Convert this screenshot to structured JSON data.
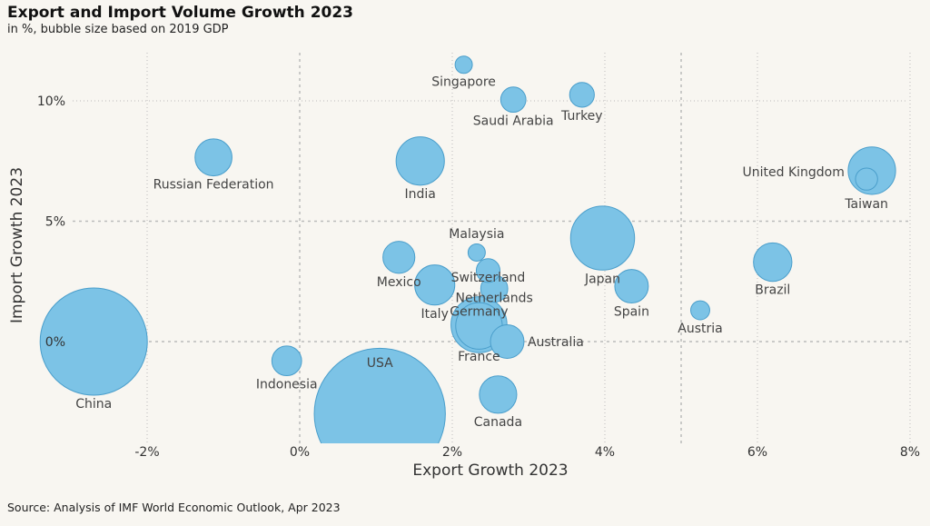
{
  "title": "Export and Import Volume Growth 2023",
  "subtitle": "in %, bubble size based on 2019 GDP",
  "source": "Source: Analysis of IMF World Economic Outlook, Apr 2023",
  "colors": {
    "bubble_fill": "#7cc3e6",
    "bubble_stroke": "#4a9ecb",
    "gridline": "#bbbbbb",
    "background": "#f8f6f1"
  },
  "chart_data": {
    "type": "scatter",
    "variant": "bubble",
    "xlabel": "Export Growth 2023",
    "ylabel": "Import Growth 2023",
    "xlim": [
      -3.0,
      8.0
    ],
    "ylim": [
      -4.0,
      12.0
    ],
    "xticks": [
      -2,
      0,
      2,
      4,
      6,
      8
    ],
    "xtick_labels": [
      "-2%",
      "0%",
      "2%",
      "4%",
      "6%",
      "8%"
    ],
    "yticks": [
      0,
      5,
      10
    ],
    "ytick_labels": [
      "0%",
      "5%",
      "10%"
    ],
    "grid": "dotted, at each tick",
    "size_variable": "2019 GDP (relative)",
    "points": [
      {
        "label": "China",
        "x": -2.7,
        "y": 0.0,
        "size": 14.3,
        "label_pos": "below"
      },
      {
        "label": "USA",
        "x": 1.05,
        "y": -3.0,
        "size": 21.4,
        "label_pos": "above"
      },
      {
        "label": "Indonesia",
        "x": -0.17,
        "y": -0.8,
        "size": 1.1,
        "label_pos": "below"
      },
      {
        "label": "Russian Federation",
        "x": -1.13,
        "y": 7.65,
        "size": 1.7,
        "label_pos": "below"
      },
      {
        "label": "India",
        "x": 1.58,
        "y": 7.5,
        "size": 2.9,
        "label_pos": "below"
      },
      {
        "label": "Singapore",
        "x": 2.15,
        "y": 11.5,
        "size": 0.37,
        "label_pos": "below"
      },
      {
        "label": "Saudi Arabia",
        "x": 2.8,
        "y": 10.05,
        "size": 0.79,
        "label_pos": "below"
      },
      {
        "label": "Turkey",
        "x": 3.7,
        "y": 10.25,
        "size": 0.76,
        "label_pos": "below"
      },
      {
        "label": "United Kingdom",
        "x": 7.5,
        "y": 7.1,
        "size": 2.8,
        "label_pos": "left"
      },
      {
        "label": "Taiwan",
        "x": 7.43,
        "y": 6.75,
        "size": 0.61,
        "label_pos": "below"
      },
      {
        "label": "Malaysia",
        "x": 2.32,
        "y": 3.7,
        "size": 0.37,
        "label_pos": "above"
      },
      {
        "label": "Mexico",
        "x": 1.3,
        "y": 3.5,
        "size": 1.27,
        "label_pos": "below"
      },
      {
        "label": "Japan",
        "x": 3.97,
        "y": 4.3,
        "size": 5.1,
        "label_pos": "below"
      },
      {
        "label": "Brazil",
        "x": 6.2,
        "y": 3.3,
        "size": 1.84,
        "label_pos": "below"
      },
      {
        "label": "Switzerland",
        "x": 2.47,
        "y": 2.95,
        "size": 0.7,
        "label_pos": "below"
      },
      {
        "label": "Netherlands",
        "x": 2.55,
        "y": 2.2,
        "size": 0.91,
        "label_pos": "below"
      },
      {
        "label": "Italy",
        "x": 1.77,
        "y": 2.35,
        "size": 2.0,
        "label_pos": "below"
      },
      {
        "label": "Spain",
        "x": 4.35,
        "y": 2.3,
        "size": 1.4,
        "label_pos": "below"
      },
      {
        "label": "Austria",
        "x": 5.25,
        "y": 1.3,
        "size": 0.45,
        "label_pos": "below"
      },
      {
        "label": "Germany",
        "x": 2.35,
        "y": 0.7,
        "size": 3.9,
        "label_pos": "above"
      },
      {
        "label": "France",
        "x": 2.35,
        "y": 0.65,
        "size": 2.7,
        "label_pos": "below"
      },
      {
        "label": "Australia",
        "x": 2.72,
        "y": 0.0,
        "size": 1.4,
        "label_pos": "right"
      },
      {
        "label": "Canada",
        "x": 2.6,
        "y": -2.2,
        "size": 1.74,
        "label_pos": "below"
      }
    ]
  }
}
